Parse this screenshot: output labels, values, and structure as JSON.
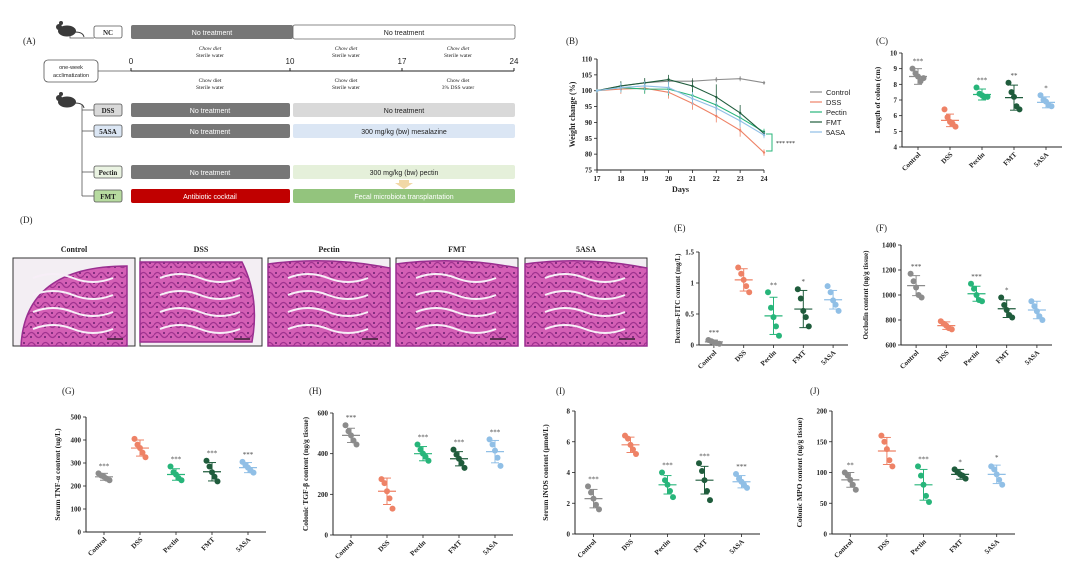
{
  "colors": {
    "Control": "#8c8c8c",
    "DSS": "#ee8266",
    "Pectin": "#27b57a",
    "FMT": "#1f5c3c",
    "5ASA": "#90bfe6",
    "dark_bar": "#777777",
    "light_bar": "#d9d9d9",
    "blue_bar": "#dbe6f4",
    "green_bar": "#e5f0da",
    "fmt_bar": "#93c47d",
    "red_bar": "#c00000"
  },
  "panel_a": {
    "label": "(A)",
    "nc_group": "NC",
    "nc_left": "No treatment",
    "nc_right": "No treatment",
    "acclim": [
      "one-week",
      "acclimatization"
    ],
    "ticks": [
      "0",
      "10",
      "17",
      "24"
    ],
    "above_diet": [
      [
        "Chow diet",
        "Sterile water"
      ],
      [
        "Chow diet",
        "Sterile water"
      ],
      [
        "Chow diet",
        "Sterile water"
      ]
    ],
    "below_diet": [
      [
        "Chow diet",
        "Sterile water"
      ],
      [
        "Chow diet",
        "Sterile water"
      ],
      [
        "Chow diet",
        "3% DSS water"
      ]
    ],
    "groups": [
      {
        "name": "DSS",
        "left": "No treatment",
        "right": "No treatment"
      },
      {
        "name": "5ASA",
        "left": "No treatment",
        "right": "300 mg/kg (bw) mesalazine"
      },
      {
        "name": "Pectin",
        "left": "No treatment",
        "right": "300 mg/kg (bw) pectin"
      },
      {
        "name": "FMT",
        "left": "Antibiotic cocktail",
        "right": "Fecal microbiota transplantation"
      }
    ]
  },
  "panel_d": {
    "label": "(D)",
    "images": [
      "Control",
      "DSS",
      "Pectin",
      "FMT",
      "5ASA"
    ]
  },
  "chart_data": [
    {
      "id": "B",
      "label": "(B)",
      "type": "line",
      "xlabel": "Days",
      "ylabel": "Weight change (%)",
      "xlim": [
        17,
        24
      ],
      "ylim": [
        75,
        110
      ],
      "xticks": [
        17,
        18,
        19,
        20,
        21,
        22,
        23,
        24
      ],
      "yticks": [
        75,
        80,
        85,
        90,
        95,
        100,
        105,
        110
      ],
      "x": [
        17,
        18,
        19,
        20,
        21,
        22,
        23,
        24
      ],
      "series": [
        {
          "name": "Control",
          "values": [
            100,
            101.5,
            102.5,
            103,
            103,
            103.5,
            103.8,
            102.5
          ],
          "err": [
            0.5,
            1,
            1,
            1,
            1,
            0.8,
            0.8,
            0.6
          ]
        },
        {
          "name": "DSS",
          "values": [
            100,
            100.5,
            100.8,
            99.5,
            96,
            92,
            87.5,
            80.5
          ],
          "err": [
            0.5,
            1.5,
            1.5,
            2,
            2,
            2,
            2,
            1
          ]
        },
        {
          "name": "Pectin",
          "values": [
            100,
            101,
            100.5,
            100.5,
            98.5,
            95.5,
            91.5,
            87
          ],
          "err": [
            0.5,
            1.5,
            1.5,
            2,
            2,
            2,
            2.5,
            1
          ]
        },
        {
          "name": "FMT",
          "values": [
            100,
            101.5,
            102.5,
            103.5,
            101.5,
            98,
            93,
            86.5
          ],
          "err": [
            0.5,
            1.5,
            1.5,
            1.5,
            2,
            4,
            2.5,
            1
          ]
        },
        {
          "name": "5ASA",
          "values": [
            100,
            101,
            101.5,
            101,
            97.5,
            94.5,
            90.5,
            86
          ],
          "err": [
            0.5,
            1.5,
            1.5,
            2,
            2,
            2,
            2,
            1
          ]
        }
      ],
      "annotations": [
        "***",
        "***"
      ],
      "legend": "right"
    },
    {
      "id": "C",
      "label": "(C)",
      "type": "scatter",
      "ylabel": "Length of colon (cm)",
      "ylim": [
        4,
        10
      ],
      "yticks": [
        4,
        5,
        6,
        7,
        8,
        9,
        10
      ],
      "categories": [
        "Control",
        "DSS",
        "Pectin",
        "FMT",
        "5ASA"
      ],
      "means": [
        8.5,
        5.7,
        7.35,
        7.15,
        6.85
      ],
      "sds": [
        0.5,
        0.4,
        0.35,
        0.8,
        0.35
      ],
      "points": [
        [
          9.0,
          8.7,
          8.5,
          8.2,
          8.4
        ],
        [
          6.4,
          5.9,
          5.6,
          5.5,
          5.3
        ],
        [
          7.8,
          7.4,
          7.3,
          7.2,
          7.2
        ],
        [
          8.1,
          7.5,
          7.2,
          6.6,
          6.4
        ],
        [
          7.3,
          7.0,
          6.9,
          6.7,
          6.6
        ]
      ],
      "sig": [
        "***",
        "",
        "***",
        "**",
        "*"
      ]
    },
    {
      "id": "E",
      "label": "(E)",
      "type": "scatter",
      "ylabel": "Dextran-FITC content (mg/L)",
      "ylim": [
        0,
        1.5
      ],
      "yticks": [
        0.0,
        0.5,
        1.0,
        1.5
      ],
      "categories": [
        "Control",
        "DSS",
        "Pectin",
        "FMT",
        "5ASA"
      ],
      "means": [
        0.05,
        1.05,
        0.47,
        0.58,
        0.73
      ],
      "sds": [
        0.03,
        0.18,
        0.3,
        0.3,
        0.15
      ],
      "points": [
        [
          0.08,
          0.06,
          0.04,
          0.03,
          0.02
        ],
        [
          1.25,
          1.15,
          1.05,
          0.95,
          0.85
        ],
        [
          0.85,
          0.6,
          0.45,
          0.3,
          0.15
        ],
        [
          0.9,
          0.75,
          0.55,
          0.45,
          0.3
        ],
        [
          0.95,
          0.85,
          0.72,
          0.65,
          0.55
        ]
      ],
      "sig": [
        "***",
        "",
        "**",
        "*",
        ""
      ]
    },
    {
      "id": "F",
      "label": "(F)",
      "type": "scatter",
      "ylabel": "Occludin content (ng/g tissue)",
      "ylim": [
        600,
        1400
      ],
      "yticks": [
        600,
        800,
        1000,
        1200,
        1400
      ],
      "categories": [
        "Control",
        "DSS",
        "Pectin",
        "FMT",
        "5ASA"
      ],
      "means": [
        1075,
        755,
        1010,
        890,
        880
      ],
      "sds": [
        80,
        30,
        60,
        70,
        70
      ],
      "points": [
        [
          1170,
          1110,
          1060,
          1000,
          980
        ],
        [
          790,
          770,
          755,
          735,
          725
        ],
        [
          1090,
          1050,
          1000,
          960,
          950
        ],
        [
          980,
          920,
          880,
          840,
          820
        ],
        [
          950,
          910,
          870,
          830,
          800
        ]
      ],
      "sig": [
        "***",
        "",
        "***",
        "*",
        ""
      ]
    },
    {
      "id": "G",
      "label": "(G)",
      "type": "scatter",
      "ylabel": "Serum TNF-α content (ug/L)",
      "ylim": [
        0,
        500
      ],
      "yticks": [
        0,
        100,
        200,
        300,
        400,
        500
      ],
      "categories": [
        "Control",
        "DSS",
        "Pectin",
        "FMT",
        "5ASA"
      ],
      "means": [
        240,
        365,
        250,
        262,
        280
      ],
      "sds": [
        15,
        35,
        25,
        40,
        22
      ],
      "points": [
        [
          255,
          245,
          240,
          232,
          225
        ],
        [
          405,
          380,
          365,
          345,
          325
        ],
        [
          285,
          260,
          250,
          235,
          225
        ],
        [
          310,
          285,
          260,
          240,
          220
        ],
        [
          305,
          290,
          280,
          268,
          258
        ]
      ],
      "sig": [
        "***",
        "",
        "***",
        "***",
        "***"
      ]
    },
    {
      "id": "H",
      "label": "(H)",
      "type": "scatter",
      "ylabel": "Colonic TGF-β content (ng/g tissue)",
      "ylim": [
        0,
        600
      ],
      "yticks": [
        0,
        200,
        400,
        600
      ],
      "categories": [
        "Control",
        "DSS",
        "Pectin",
        "FMT",
        "5ASA"
      ],
      "means": [
        490,
        215,
        400,
        375,
        410
      ],
      "sds": [
        35,
        65,
        35,
        35,
        55
      ],
      "points": [
        [
          540,
          510,
          490,
          465,
          445
        ],
        [
          275,
          255,
          215,
          180,
          130
        ],
        [
          445,
          420,
          400,
          385,
          365
        ],
        [
          420,
          395,
          375,
          355,
          330
        ],
        [
          470,
          445,
          415,
          380,
          340
        ]
      ],
      "sig": [
        "***",
        "",
        "***",
        "***",
        "***"
      ]
    },
    {
      "id": "I",
      "label": "(I)",
      "type": "scatter",
      "ylabel": "Serum iNOS content (μmol/L)",
      "ylim": [
        0,
        8
      ],
      "yticks": [
        0,
        2,
        4,
        6,
        8
      ],
      "categories": [
        "Control",
        "DSS",
        "Pectin",
        "FMT",
        "5ASA"
      ],
      "means": [
        2.3,
        5.8,
        3.2,
        3.5,
        3.4
      ],
      "sds": [
        0.6,
        0.5,
        0.6,
        0.9,
        0.4
      ],
      "points": [
        [
          3.1,
          2.7,
          2.3,
          1.9,
          1.6
        ],
        [
          6.4,
          6.2,
          5.8,
          5.5,
          5.2
        ],
        [
          4.0,
          3.5,
          3.2,
          2.8,
          2.4
        ],
        [
          4.6,
          4.1,
          3.5,
          2.8,
          2.2
        ],
        [
          3.9,
          3.6,
          3.4,
          3.2,
          3.0
        ]
      ],
      "sig": [
        "***",
        "",
        "***",
        "***",
        "***"
      ]
    },
    {
      "id": "J",
      "label": "(J)",
      "type": "scatter",
      "ylabel": "Colonic MPO content (ng/g tissue)",
      "ylim": [
        0,
        200
      ],
      "yticks": [
        0,
        50,
        100,
        150,
        200
      ],
      "categories": [
        "Control",
        "DSS",
        "Pectin",
        "FMT",
        "5ASA"
      ],
      "means": [
        88,
        135,
        80,
        97,
        97
      ],
      "sds": [
        12,
        22,
        25,
        8,
        15
      ],
      "points": [
        [
          100,
          95,
          88,
          80,
          72
        ],
        [
          160,
          150,
          138,
          120,
          110
        ],
        [
          110,
          95,
          80,
          62,
          52
        ],
        [
          105,
          100,
          97,
          95,
          90
        ],
        [
          110,
          105,
          97,
          88,
          80
        ]
      ],
      "sig": [
        "**",
        "",
        "***",
        "*",
        "*"
      ]
    }
  ]
}
